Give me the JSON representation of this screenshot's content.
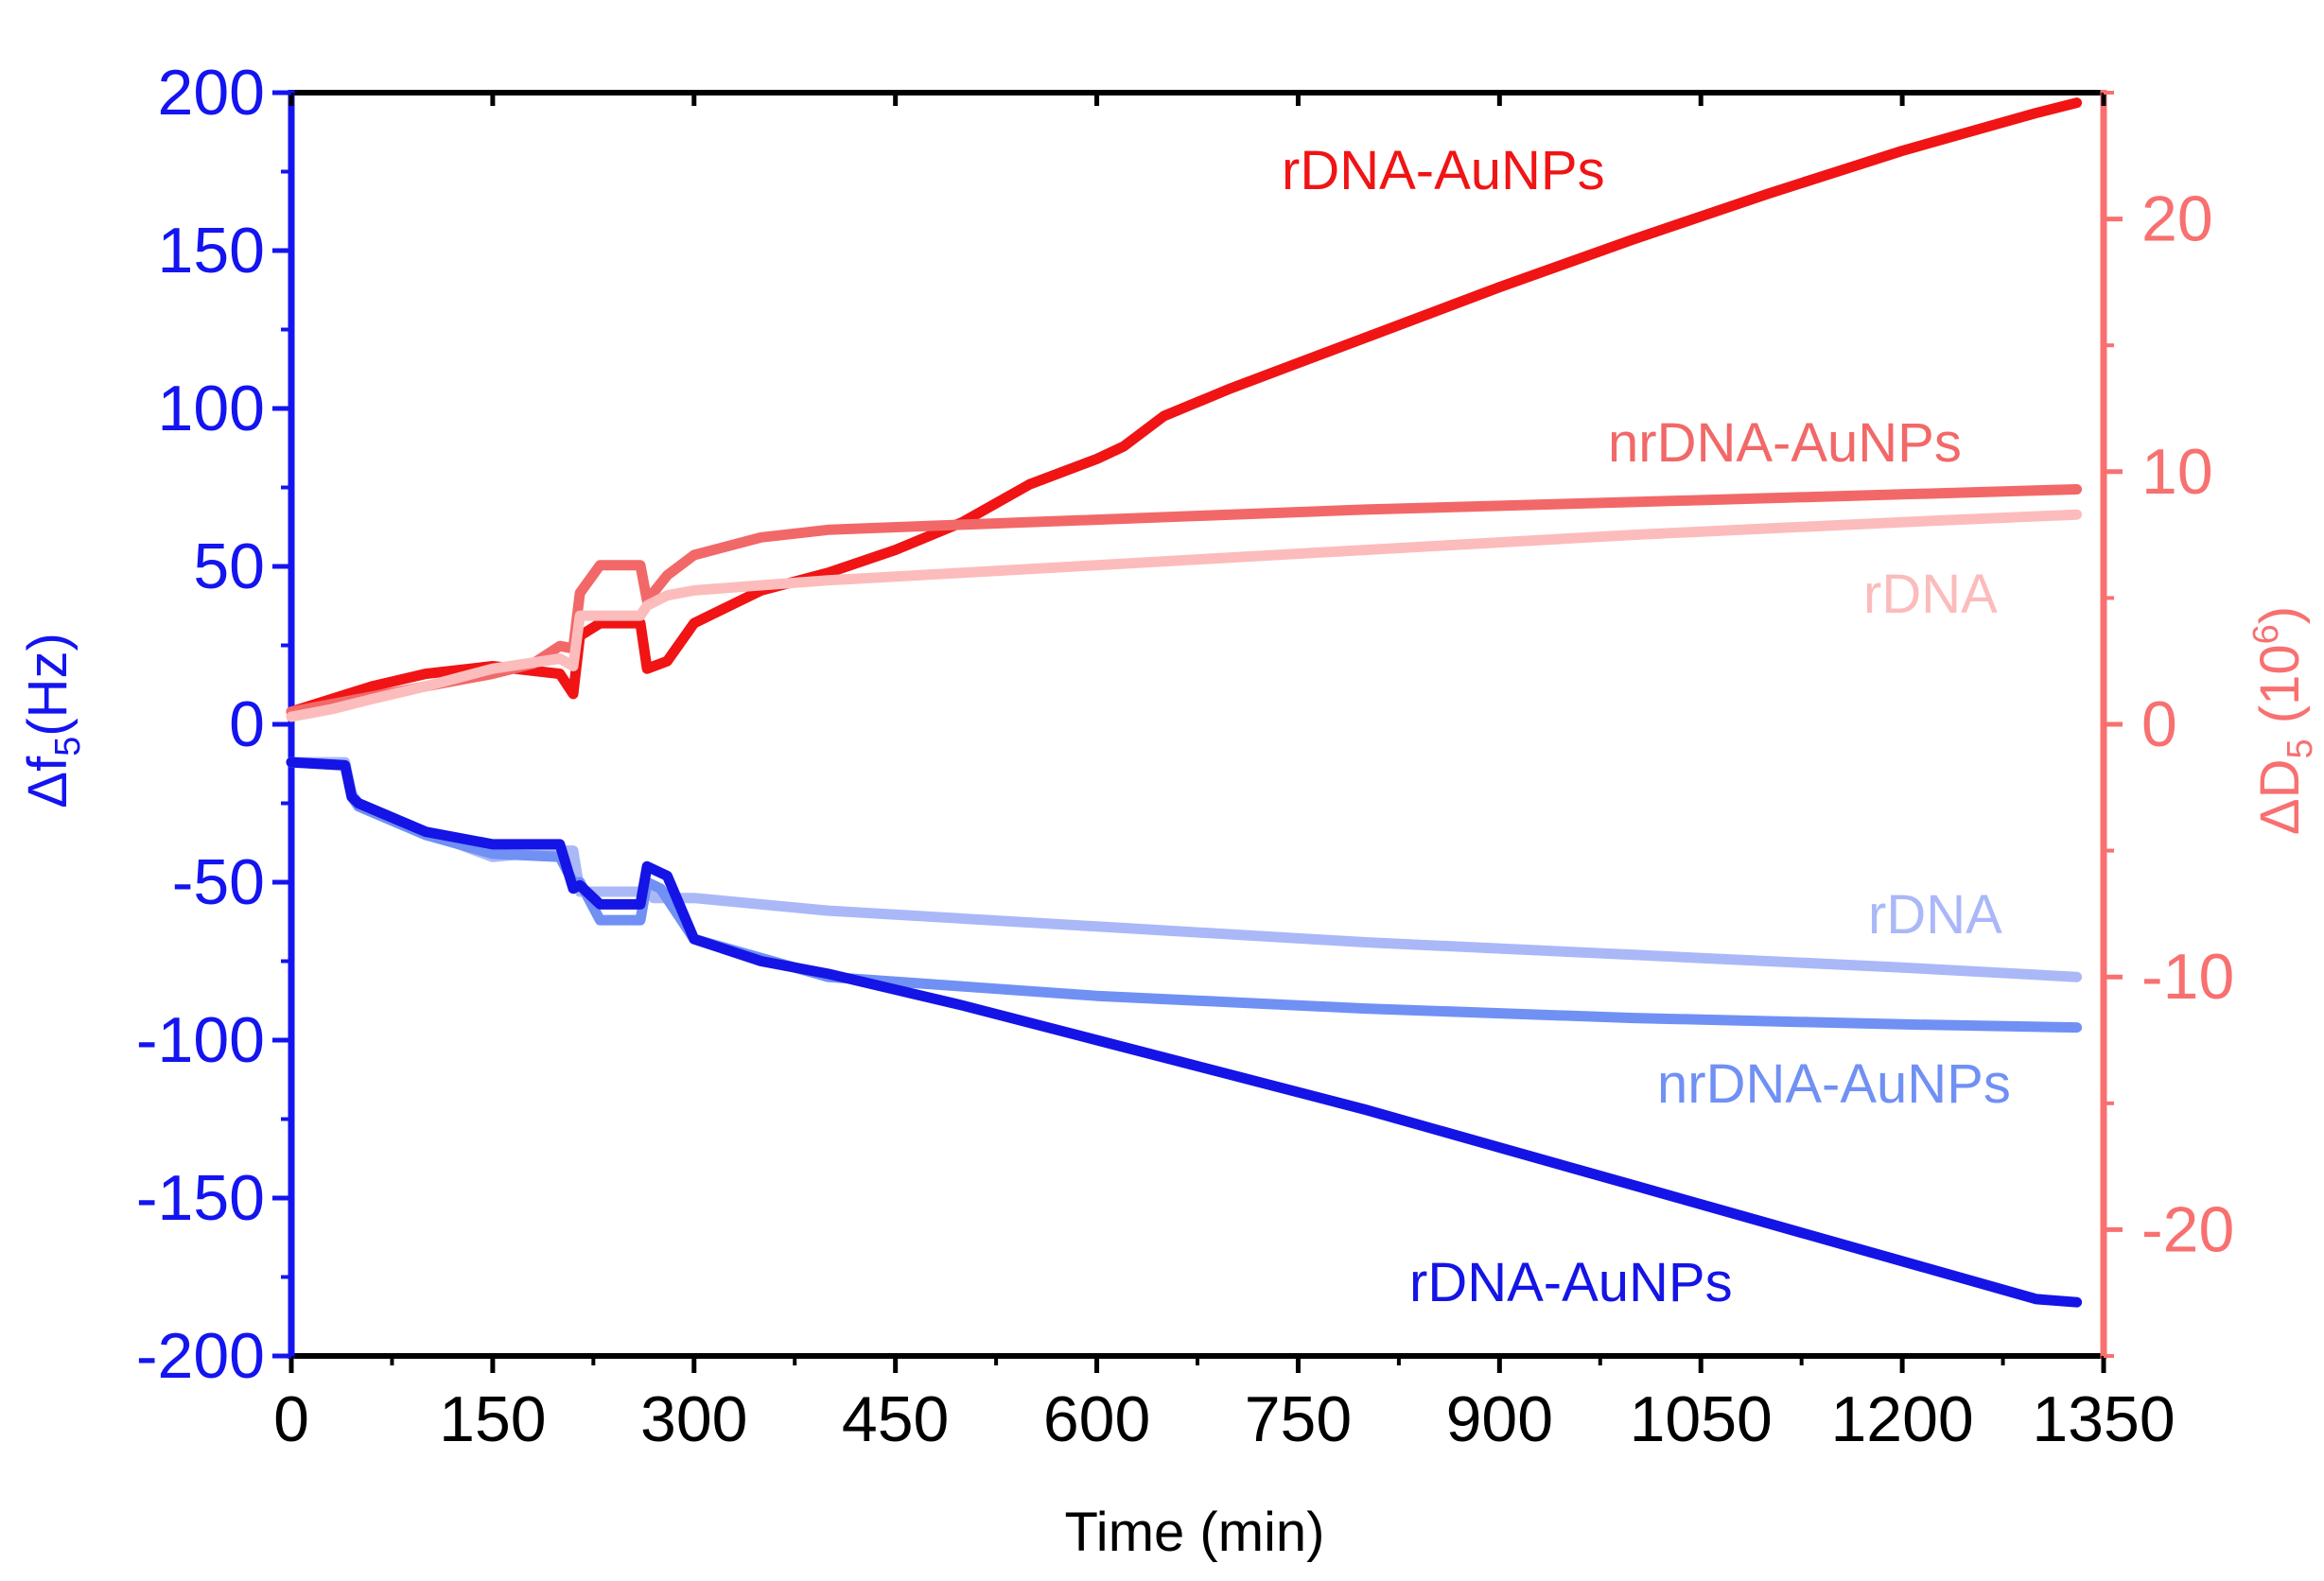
{
  "chart_data": {
    "type": "line",
    "xlabel": "Time (min)",
    "y_left_label": {
      "main": "Δf",
      "sub": "5",
      "rest": "(Hz)"
    },
    "y_right_label": {
      "main": "ΔD",
      "sub": "5",
      "rest": " (10",
      "sup": "6",
      "close": ")"
    },
    "xlim": [
      0,
      1350
    ],
    "ylim_left": [
      -200,
      200
    ],
    "ylim_right": [
      -25,
      25
    ],
    "x_ticks": [
      "0",
      "150",
      "300",
      "450",
      "600",
      "750",
      "900",
      "1050",
      "1200",
      "1350"
    ],
    "y_left_ticks": [
      "200",
      "150",
      "100",
      "50",
      "0",
      "-50",
      "-100",
      "-150",
      "-200"
    ],
    "y_right_ticks": [
      "20",
      "10",
      "0",
      "-10",
      "-20"
    ],
    "colors": {
      "left_axis": "#1414f0",
      "right_axis": "#f87070",
      "bottom_axis": "#000000"
    },
    "series": [
      {
        "name": "rDNA-AuNPs",
        "axis": "right",
        "color": "#f01414",
        "x": [
          0,
          30,
          60,
          100,
          150,
          200,
          210,
          215,
          230,
          260,
          265,
          280,
          300,
          350,
          400,
          450,
          500,
          550,
          600,
          620,
          650,
          700,
          750,
          800,
          900,
          1000,
          1100,
          1200,
          1300,
          1330
        ],
        "y": [
          0.5,
          1.0,
          1.5,
          2.0,
          2.3,
          2.0,
          1.2,
          3.5,
          4.0,
          4.0,
          2.2,
          2.5,
          4.0,
          5.3,
          6.0,
          6.9,
          8.0,
          9.5,
          10.5,
          11.0,
          12.2,
          13.3,
          14.3,
          15.3,
          17.3,
          19.2,
          21.0,
          22.7,
          24.2,
          24.6
        ]
      },
      {
        "name": "nrDNA-AuNPs",
        "axis": "right",
        "color": "#f26868",
        "x": [
          0,
          50,
          100,
          150,
          180,
          200,
          210,
          215,
          230,
          260,
          265,
          280,
          300,
          350,
          400,
          500,
          600,
          800,
          1000,
          1200,
          1330
        ],
        "y": [
          0.5,
          1.0,
          1.5,
          2.0,
          2.4,
          3.1,
          3.0,
          5.2,
          6.3,
          6.3,
          4.9,
          5.9,
          6.7,
          7.4,
          7.7,
          7.9,
          8.1,
          8.5,
          8.8,
          9.1,
          9.3
        ]
      },
      {
        "name": "rDNA",
        "axis": "right",
        "color": "#fcbcbc",
        "x": [
          0,
          30,
          60,
          100,
          150,
          200,
          210,
          215,
          260,
          265,
          280,
          300,
          350,
          400,
          500,
          600,
          800,
          1000,
          1200,
          1330
        ],
        "y": [
          0.3,
          0.6,
          1.0,
          1.5,
          2.2,
          2.6,
          2.3,
          4.3,
          4.3,
          4.7,
          5.1,
          5.3,
          5.5,
          5.7,
          6.0,
          6.3,
          6.9,
          7.5,
          8.0,
          8.3
        ]
      },
      {
        "name": "rDNA",
        "axis": "left",
        "color": "#aab8f8",
        "x": [
          0,
          40,
          45,
          50,
          100,
          150,
          200,
          210,
          215,
          260,
          265,
          270,
          300,
          400,
          600,
          800,
          1000,
          1200,
          1330
        ],
        "y": [
          -12,
          -12,
          -22,
          -25,
          -34,
          -42,
          -40,
          -40,
          -53,
          -53,
          -50,
          -55,
          -55,
          -59,
          -64,
          -69,
          -73,
          -77,
          -80
        ]
      },
      {
        "name": "nrDNA-AuNPs",
        "axis": "left",
        "color": "#7090f4",
        "x": [
          0,
          40,
          45,
          50,
          100,
          150,
          200,
          210,
          215,
          230,
          260,
          265,
          275,
          300,
          350,
          400,
          500,
          600,
          800,
          1000,
          1200,
          1330
        ],
        "y": [
          -12,
          -13,
          -23,
          -26,
          -35,
          -41,
          -42,
          -50,
          -50,
          -62,
          -62,
          -50,
          -52,
          -68,
          -74,
          -80,
          -83,
          -86,
          -90,
          -93,
          -95,
          -96
        ]
      },
      {
        "name": "rDNA-AuNPs",
        "axis": "left",
        "color": "#1414e6",
        "x": [
          0,
          40,
          45,
          50,
          100,
          150,
          200,
          210,
          215,
          230,
          260,
          265,
          280,
          300,
          350,
          400,
          500,
          600,
          700,
          800,
          900,
          1000,
          1100,
          1200,
          1300,
          1330
        ],
        "y": [
          -12,
          -13,
          -23,
          -25,
          -34,
          -38,
          -38,
          -52,
          -51,
          -57,
          -57,
          -45,
          -48,
          -68,
          -75,
          -79,
          -89,
          -100,
          -111,
          -122,
          -134,
          -146,
          -158,
          -170,
          -182,
          -183
        ]
      }
    ],
    "labels": [
      {
        "text": "rDNA-AuNPs",
        "color": "#f01414"
      },
      {
        "text": "nrDNA-AuNPs",
        "color": "#f26868"
      },
      {
        "text": "rDNA",
        "color": "#fcbcbc"
      },
      {
        "text": "rDNA",
        "color": "#aab8f8"
      },
      {
        "text": "nrDNA-AuNPs",
        "color": "#7090f4"
      },
      {
        "text": "rDNA-AuNPs",
        "color": "#1414e6"
      }
    ]
  }
}
